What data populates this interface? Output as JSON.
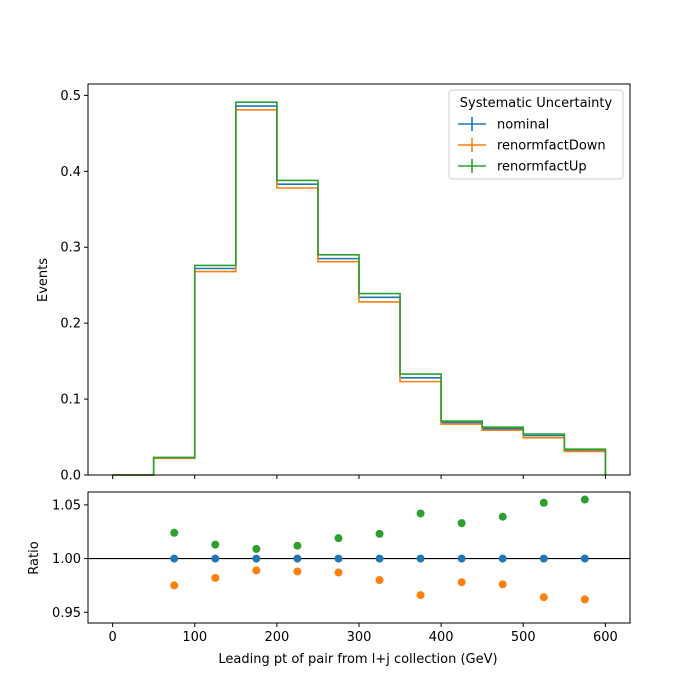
{
  "chart_data": [
    {
      "type": "line",
      "drawstyle": "steps",
      "xlabel": "",
      "ylabel": "Events",
      "xlim": [
        -30,
        630
      ],
      "ylim": [
        0,
        0.515
      ],
      "xticks": [
        0,
        100,
        200,
        300,
        400,
        500,
        600
      ],
      "yticks": [
        0.0,
        0.1,
        0.2,
        0.3,
        0.4,
        0.5
      ],
      "ytick_labels": [
        "0.0",
        "0.1",
        "0.2",
        "0.3",
        "0.4",
        "0.5"
      ],
      "bin_edges": [
        0,
        50,
        100,
        150,
        200,
        250,
        300,
        350,
        400,
        450,
        500,
        550,
        600
      ],
      "legend": {
        "title": "Systematic Uncertainty",
        "placement": "top-right"
      },
      "series": [
        {
          "name": "nominal",
          "color": "#1f77b4",
          "values": [
            0.0,
            0.023,
            0.272,
            0.486,
            0.383,
            0.285,
            0.234,
            0.128,
            0.069,
            0.061,
            0.052,
            0.033
          ]
        },
        {
          "name": "renormfactDown",
          "color": "#ff7f0e",
          "values": [
            0.0,
            0.022,
            0.268,
            0.481,
            0.378,
            0.281,
            0.228,
            0.123,
            0.067,
            0.059,
            0.049,
            0.031
          ]
        },
        {
          "name": "renormfactUp",
          "color": "#2ca02c",
          "values": [
            0.0,
            0.023,
            0.276,
            0.491,
            0.388,
            0.29,
            0.239,
            0.133,
            0.071,
            0.063,
            0.054,
            0.034
          ]
        }
      ]
    },
    {
      "type": "scatter",
      "xlabel": "Leading pt of pair from l+j collection (GeV)",
      "ylabel": "Ratio",
      "xlim": [
        -30,
        630
      ],
      "ylim": [
        0.94,
        1.062
      ],
      "xticks": [
        0,
        100,
        200,
        300,
        400,
        500,
        600
      ],
      "xtick_labels": [
        "0",
        "100",
        "200",
        "300",
        "400",
        "500",
        "600"
      ],
      "yticks": [
        0.95,
        1.0,
        1.05
      ],
      "ytick_labels": [
        "0.95",
        "1.00",
        "1.05"
      ],
      "reference_line": 1.0,
      "x": [
        75,
        125,
        175,
        225,
        275,
        325,
        375,
        425,
        475,
        525,
        575
      ],
      "series": [
        {
          "name": "nominal",
          "color": "#1f77b4",
          "values": [
            1.0,
            1.0,
            1.0,
            1.0,
            1.0,
            1.0,
            1.0,
            1.0,
            1.0,
            1.0,
            1.0
          ]
        },
        {
          "name": "renormfactDown",
          "color": "#ff7f0e",
          "values": [
            0.975,
            0.982,
            0.989,
            0.988,
            0.987,
            0.98,
            0.966,
            0.978,
            0.976,
            0.964,
            0.962
          ]
        },
        {
          "name": "renormfactUp",
          "color": "#2ca02c",
          "values": [
            1.024,
            1.013,
            1.009,
            1.012,
            1.019,
            1.023,
            1.042,
            1.033,
            1.039,
            1.052,
            1.055
          ]
        }
      ]
    }
  ]
}
